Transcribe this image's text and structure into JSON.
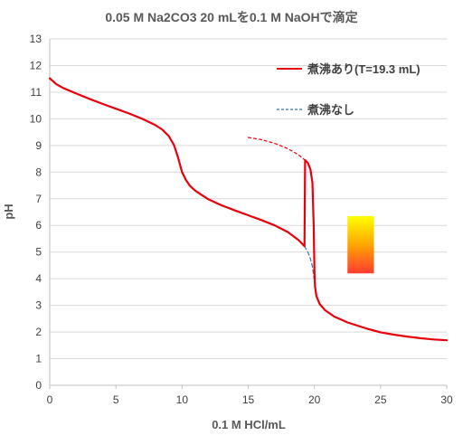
{
  "chart_data": {
    "type": "line",
    "title": "0.05 M Na2CO3 20 mLを0.1 M NaOHで滴定",
    "xlabel": "0.1 M HCl/mL",
    "ylabel": "pH",
    "xlim": [
      0,
      30
    ],
    "ylim": [
      0,
      13
    ],
    "x_ticks": [
      "0",
      "5",
      "10",
      "15",
      "20",
      "25",
      "30"
    ],
    "y_ticks": [
      "0",
      "1",
      "2",
      "3",
      "4",
      "5",
      "6",
      "7",
      "8",
      "9",
      "10",
      "11",
      "12",
      "13"
    ],
    "grid": "horizontal",
    "legend_position": "top-right",
    "series": [
      {
        "name": "煮沸あり(T=19.3 mL)",
        "color": "#e8000b",
        "style": "solid",
        "points": [
          [
            0,
            11.52
          ],
          [
            0.5,
            11.3
          ],
          [
            1,
            11.16
          ],
          [
            2,
            10.95
          ],
          [
            3,
            10.75
          ],
          [
            4,
            10.56
          ],
          [
            5,
            10.38
          ],
          [
            6,
            10.2
          ],
          [
            7,
            10.0
          ],
          [
            8,
            9.76
          ],
          [
            8.5,
            9.6
          ],
          [
            9,
            9.35
          ],
          [
            9.4,
            9.0
          ],
          [
            9.7,
            8.55
          ],
          [
            10,
            8.0
          ],
          [
            10.3,
            7.7
          ],
          [
            10.6,
            7.48
          ],
          [
            11,
            7.3
          ],
          [
            12,
            6.98
          ],
          [
            13,
            6.75
          ],
          [
            14,
            6.56
          ],
          [
            15,
            6.38
          ],
          [
            16,
            6.2
          ],
          [
            17,
            6.0
          ],
          [
            18,
            5.75
          ],
          [
            18.8,
            5.45
          ],
          [
            19.25,
            5.22
          ],
          [
            19.3,
            8.45
          ],
          [
            19.5,
            8.35
          ],
          [
            19.7,
            8.1
          ],
          [
            19.85,
            7.6
          ],
          [
            19.95,
            6.0
          ],
          [
            20.0,
            4.3
          ],
          [
            20.05,
            3.7
          ],
          [
            20.15,
            3.35
          ],
          [
            20.4,
            3.05
          ],
          [
            20.8,
            2.82
          ],
          [
            21.5,
            2.58
          ],
          [
            22.5,
            2.36
          ],
          [
            24,
            2.12
          ],
          [
            25,
            1.99
          ],
          [
            26,
            1.9
          ],
          [
            27,
            1.83
          ],
          [
            28,
            1.77
          ],
          [
            29,
            1.72
          ],
          [
            30,
            1.69
          ]
        ]
      },
      {
        "name": "煮沸なし",
        "color": "#2e75b6",
        "style": "dashed",
        "points": [
          [
            19.25,
            5.22
          ],
          [
            19.5,
            5.0
          ],
          [
            19.7,
            4.75
          ],
          [
            19.85,
            4.45
          ],
          [
            19.95,
            4.1
          ],
          [
            20.05,
            3.7
          ]
        ]
      },
      {
        "name": "",
        "color": "#e8000b",
        "style": "dotted",
        "points": [
          [
            15,
            9.3
          ],
          [
            16,
            9.22
          ],
          [
            17,
            9.08
          ],
          [
            18,
            8.88
          ],
          [
            18.8,
            8.65
          ],
          [
            19.3,
            8.45
          ]
        ]
      }
    ],
    "colorbar": {
      "range": [
        4.2,
        6.35
      ],
      "x_range": [
        22.5,
        24.5
      ],
      "colors": [
        "#ff3b30",
        "#ffa500",
        "#ffff00"
      ]
    }
  }
}
